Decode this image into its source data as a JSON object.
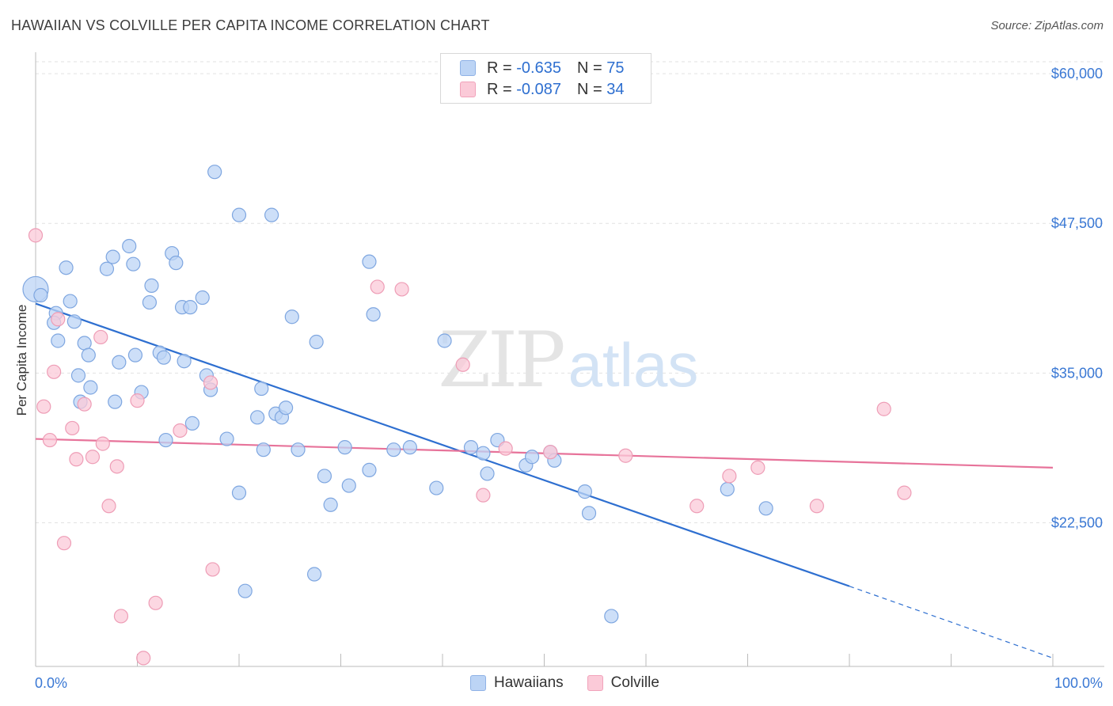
{
  "title": "HAWAIIAN VS COLVILLE PER CAPITA INCOME CORRELATION CHART",
  "source": "Source: ZipAtlas.com",
  "watermark": {
    "zip": "ZIP",
    "atlas": "atlas"
  },
  "legend": {
    "rows": [
      {
        "r_label": "R =",
        "r_value": "-0.635",
        "n_label": "N =",
        "n_value": "75"
      },
      {
        "r_label": "R =",
        "r_value": "-0.087",
        "n_label": "N =",
        "n_value": "34"
      }
    ]
  },
  "bottom_legend": [
    "Hawaiians",
    "Colville"
  ],
  "colors": {
    "blue_fill": "#bcd4f5",
    "blue_stroke": "#7ea6e0",
    "blue_line": "#2e6fd0",
    "pink_fill": "#fbcad8",
    "pink_stroke": "#ee9db6",
    "pink_line": "#e7739a",
    "tick_label": "#3a78d4",
    "grid": "#e2e2e2"
  },
  "chart_data": {
    "type": "scatter",
    "title": "HAWAIIAN VS COLVILLE PER CAPITA INCOME CORRELATION CHART",
    "xlabel": "",
    "ylabel": "Per Capita Income",
    "x_tick_labels": [
      "0.0%",
      "100.0%"
    ],
    "y_tick_labels": [
      "$22,500",
      "$35,000",
      "$47,500",
      "$60,000"
    ],
    "y_ticks": [
      22500,
      35000,
      47500,
      60000
    ],
    "xlim": [
      0,
      100
    ],
    "ylim": [
      10500,
      61000
    ],
    "grid": true,
    "legend_position": "top-center",
    "series": [
      {
        "name": "Hawaiians",
        "r": -0.635,
        "n": 75,
        "trend": {
          "x0": 0,
          "y0": 40800,
          "x1": 80,
          "y1": 17200,
          "dashed_to_x": 100,
          "dashed_to_y": 11200
        },
        "points": [
          [
            0.0,
            42000,
            "large"
          ],
          [
            0.5,
            41500
          ],
          [
            2.0,
            40000
          ],
          [
            1.8,
            39200
          ],
          [
            3.4,
            41000
          ],
          [
            3.8,
            39300
          ],
          [
            3.0,
            43800
          ],
          [
            2.2,
            37700
          ],
          [
            4.8,
            37500
          ],
          [
            5.2,
            36500
          ],
          [
            7.0,
            43700
          ],
          [
            7.6,
            44700
          ],
          [
            9.2,
            45600
          ],
          [
            9.6,
            44100
          ],
          [
            8.2,
            35900
          ],
          [
            9.8,
            36500
          ],
          [
            11.2,
            40900
          ],
          [
            11.4,
            42300
          ],
          [
            12.2,
            36700
          ],
          [
            12.6,
            36300
          ],
          [
            13.4,
            45000
          ],
          [
            13.8,
            44200
          ],
          [
            14.4,
            40500
          ],
          [
            15.2,
            40500
          ],
          [
            14.6,
            36000
          ],
          [
            16.4,
            41300
          ],
          [
            16.8,
            34800
          ],
          [
            17.2,
            33600
          ],
          [
            5.4,
            33800
          ],
          [
            4.2,
            34800
          ],
          [
            4.4,
            32600
          ],
          [
            7.8,
            32600
          ],
          [
            10.4,
            33400
          ],
          [
            12.8,
            29400
          ],
          [
            15.4,
            30800
          ],
          [
            18.8,
            29500
          ],
          [
            20.0,
            25000
          ],
          [
            22.2,
            33700
          ],
          [
            21.8,
            31300
          ],
          [
            23.6,
            31600
          ],
          [
            24.2,
            31300
          ],
          [
            24.6,
            32100
          ],
          [
            22.4,
            28600
          ],
          [
            25.8,
            28600
          ],
          [
            23.2,
            48200
          ],
          [
            20.0,
            48200
          ],
          [
            17.6,
            51800
          ],
          [
            20.6,
            16800
          ],
          [
            25.2,
            39700
          ],
          [
            27.6,
            37600
          ],
          [
            28.4,
            26400
          ],
          [
            29.0,
            24000
          ],
          [
            30.4,
            28800
          ],
          [
            30.8,
            25600
          ],
          [
            27.4,
            18200
          ],
          [
            32.8,
            26900
          ],
          [
            33.2,
            39900
          ],
          [
            32.8,
            44300
          ],
          [
            35.2,
            28600
          ],
          [
            36.8,
            28800
          ],
          [
            39.4,
            25400
          ],
          [
            40.2,
            37700
          ],
          [
            42.8,
            28800
          ],
          [
            44.0,
            28300
          ],
          [
            44.4,
            26600
          ],
          [
            45.4,
            29400
          ],
          [
            48.2,
            27300
          ],
          [
            48.8,
            28000
          ],
          [
            50.6,
            28400
          ],
          [
            51.0,
            27700
          ],
          [
            54.0,
            25100
          ],
          [
            54.4,
            23300
          ],
          [
            56.6,
            14700
          ],
          [
            68.0,
            25300
          ],
          [
            71.8,
            23700
          ]
        ]
      },
      {
        "name": "Colville",
        "r": -0.087,
        "n": 34,
        "trend": {
          "x0": 0,
          "y0": 29500,
          "x1": 100,
          "y1": 27100
        },
        "points": [
          [
            0.0,
            46500
          ],
          [
            0.8,
            32200
          ],
          [
            1.4,
            29400
          ],
          [
            1.8,
            35100
          ],
          [
            2.2,
            39500
          ],
          [
            2.8,
            20800
          ],
          [
            3.6,
            30400
          ],
          [
            4.0,
            27800
          ],
          [
            4.8,
            32400
          ],
          [
            5.6,
            28000
          ],
          [
            6.4,
            38000
          ],
          [
            6.6,
            29100
          ],
          [
            7.2,
            23900
          ],
          [
            8.0,
            27200
          ],
          [
            8.4,
            14700
          ],
          [
            10.0,
            32700
          ],
          [
            10.6,
            11200
          ],
          [
            11.8,
            15800
          ],
          [
            14.2,
            30200
          ],
          [
            17.2,
            34200
          ],
          [
            17.4,
            18600
          ],
          [
            33.6,
            42200
          ],
          [
            36.0,
            42000
          ],
          [
            42.0,
            35700
          ],
          [
            44.0,
            24800
          ],
          [
            46.2,
            28700
          ],
          [
            50.6,
            28400
          ],
          [
            58.0,
            28100
          ],
          [
            65.0,
            23900
          ],
          [
            68.2,
            26400
          ],
          [
            71.0,
            27100
          ],
          [
            76.8,
            23900
          ],
          [
            83.4,
            32000
          ],
          [
            85.4,
            25000
          ]
        ]
      }
    ]
  }
}
